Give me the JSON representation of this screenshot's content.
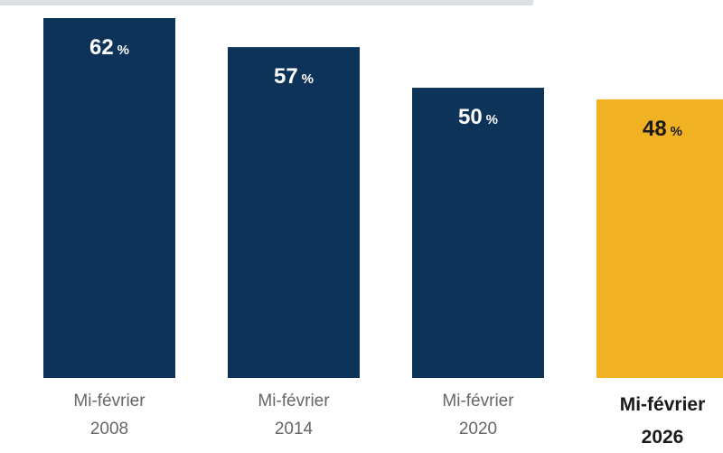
{
  "chart_data": {
    "type": "bar",
    "categories": [
      [
        "Mi-février",
        "2008"
      ],
      [
        "Mi-février",
        "2014"
      ],
      [
        "Mi-février",
        "2020"
      ],
      [
        "Mi-février",
        "2026"
      ]
    ],
    "values": [
      62,
      57,
      50,
      48
    ],
    "value_labels": [
      "62",
      "57",
      "50",
      "48"
    ],
    "unit": "%",
    "highlight_index": 3,
    "colors": {
      "bar": "#0d3358",
      "highlight": "#f0b123",
      "label_on_bar": "#ffffff",
      "label_on_highlight": "#1a1a1a",
      "category_text": "#666666",
      "category_highlight_text": "#1a1a1a"
    },
    "ylim": [
      0,
      62
    ],
    "grid": false,
    "legend": "none"
  }
}
